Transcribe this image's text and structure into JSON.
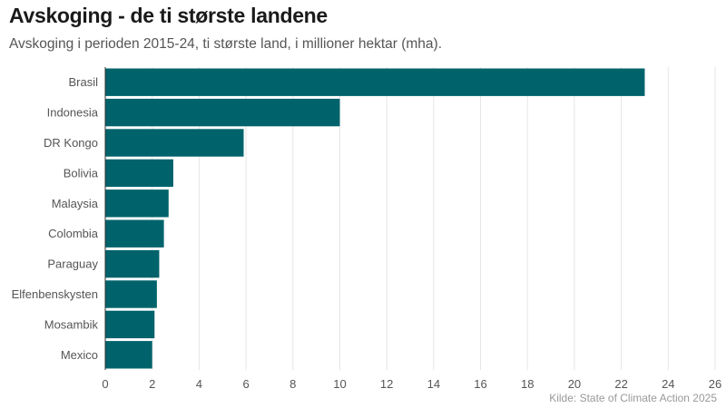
{
  "title": "Avskoging - de ti største landene",
  "subtitle": "Avskoging i perioden 2015-24, ti største land, i millioner hektar (mha).",
  "source": "Kilde: State of Climate Action 2025",
  "colors": {
    "bar": "#00636b",
    "grid": "#e6e6e6",
    "axis": "#333333"
  },
  "chart_data": {
    "type": "bar",
    "orientation": "horizontal",
    "categories": [
      "Brasil",
      "Indonesia",
      "DR Kongo",
      "Bolivia",
      "Malaysia",
      "Colombia",
      "Paraguay",
      "Elfenbenskysten",
      "Mosambik",
      "Mexico"
    ],
    "values": [
      23.0,
      10.0,
      5.9,
      2.9,
      2.7,
      2.5,
      2.3,
      2.2,
      2.1,
      2.0
    ],
    "xlim": [
      0,
      26
    ],
    "xticks": [
      0,
      2,
      4,
      6,
      8,
      10,
      12,
      14,
      16,
      18,
      20,
      22,
      24,
      26
    ],
    "grid": true
  }
}
